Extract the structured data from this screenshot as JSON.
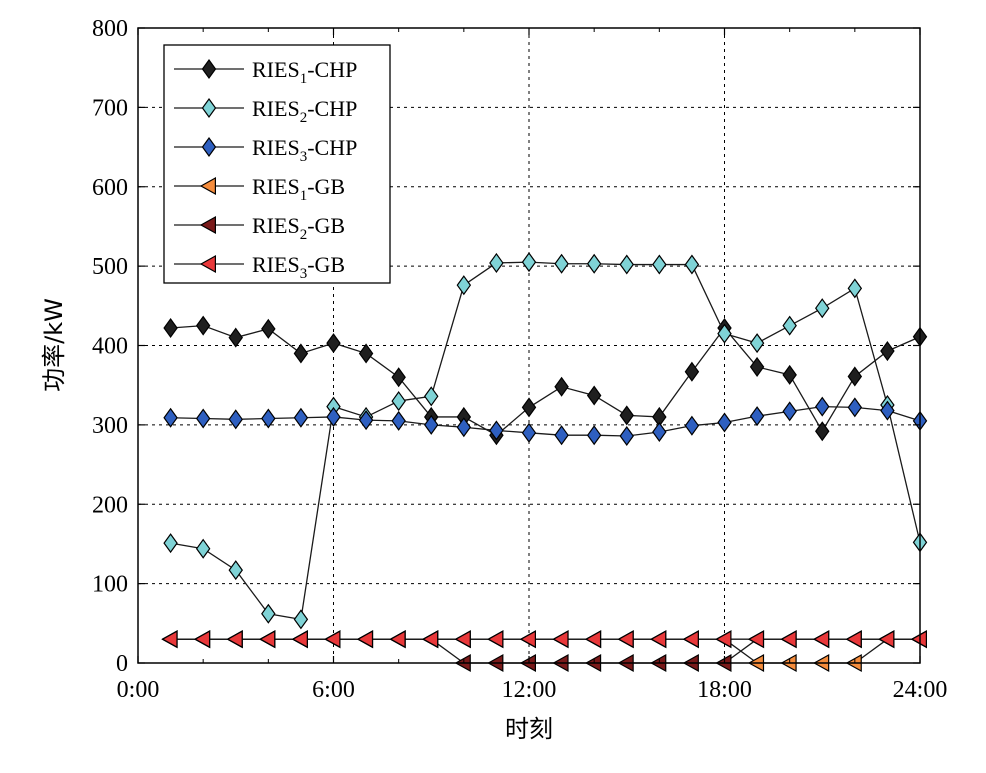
{
  "chart_data": {
    "type": "line",
    "xlabel": "时刻",
    "ylabel": "功率/kW",
    "ylim": [
      0,
      800
    ],
    "xlim": [
      0,
      24
    ],
    "y_ticks": [
      "0",
      "100",
      "200",
      "300",
      "400",
      "500",
      "600",
      "700",
      "800"
    ],
    "x_ticks": [
      {
        "value": 0,
        "label": "0:00"
      },
      {
        "value": 6,
        "label": "6:00"
      },
      {
        "value": 12,
        "label": "12:00"
      },
      {
        "value": 18,
        "label": "18:00"
      },
      {
        "value": 24,
        "label": "24:00"
      }
    ],
    "grid": true,
    "legend_position": "top-left",
    "x": [
      1,
      2,
      3,
      4,
      5,
      6,
      7,
      8,
      9,
      10,
      11,
      12,
      13,
      14,
      15,
      16,
      17,
      18,
      19,
      20,
      21,
      22,
      23,
      24
    ],
    "series": [
      {
        "name": "RIES1-CHP",
        "label_main": "RIES",
        "label_sub": "1",
        "label_rest": "-CHP",
        "marker": "diamond",
        "color": "#1f1f1f",
        "values": [
          422,
          425,
          410,
          421,
          390,
          403,
          390,
          360,
          310,
          310,
          287,
          322,
          348,
          337,
          312,
          310,
          367,
          422,
          373,
          363,
          292,
          361,
          393,
          411
        ]
      },
      {
        "name": "RIES2-CHP",
        "label_main": "RIES",
        "label_sub": "2",
        "label_rest": "-CHP",
        "marker": "diamond",
        "color": "#7fd3d6",
        "values": [
          151,
          144,
          117,
          62,
          55,
          323,
          310,
          330,
          336,
          476,
          504,
          505,
          503,
          503,
          502,
          502,
          502,
          415,
          403,
          425,
          447,
          472,
          325,
          152
        ]
      },
      {
        "name": "RIES3-CHP",
        "label_main": "RIES",
        "label_sub": "3",
        "label_rest": "-CHP",
        "marker": "diamond",
        "color": "#2e5fc0",
        "values": [
          309,
          308,
          307,
          308,
          309,
          310,
          306,
          305,
          300,
          297,
          293,
          290,
          287,
          287,
          286,
          291,
          299,
          303,
          311,
          317,
          323,
          322,
          318,
          305
        ]
      },
      {
        "name": "RIES1-GB",
        "label_main": "RIES",
        "label_sub": "1",
        "label_rest": "-GB",
        "marker": "triangle-left",
        "color": "#f58c3c",
        "values": [
          30,
          30,
          30,
          30,
          30,
          30,
          30,
          30,
          30,
          30,
          30,
          30,
          30,
          30,
          30,
          30,
          30,
          30,
          0,
          0,
          0,
          0,
          30,
          30
        ]
      },
      {
        "name": "RIES2-GB",
        "label_main": "RIES",
        "label_sub": "2",
        "label_rest": "-GB",
        "marker": "triangle-left",
        "color": "#7a1a1a",
        "values": [
          30,
          30,
          30,
          30,
          30,
          30,
          30,
          30,
          30,
          0,
          0,
          0,
          0,
          0,
          0,
          0,
          0,
          0,
          30,
          30,
          30,
          30,
          30,
          30
        ]
      },
      {
        "name": "RIES3-GB",
        "label_main": "RIES",
        "label_sub": "3",
        "label_rest": "-GB",
        "marker": "triangle-left",
        "color": "#e8383a",
        "values": [
          30,
          30,
          30,
          30,
          30,
          30,
          30,
          30,
          30,
          30,
          30,
          30,
          30,
          30,
          30,
          30,
          30,
          30,
          30,
          30,
          30,
          30,
          30,
          30
        ]
      }
    ]
  }
}
